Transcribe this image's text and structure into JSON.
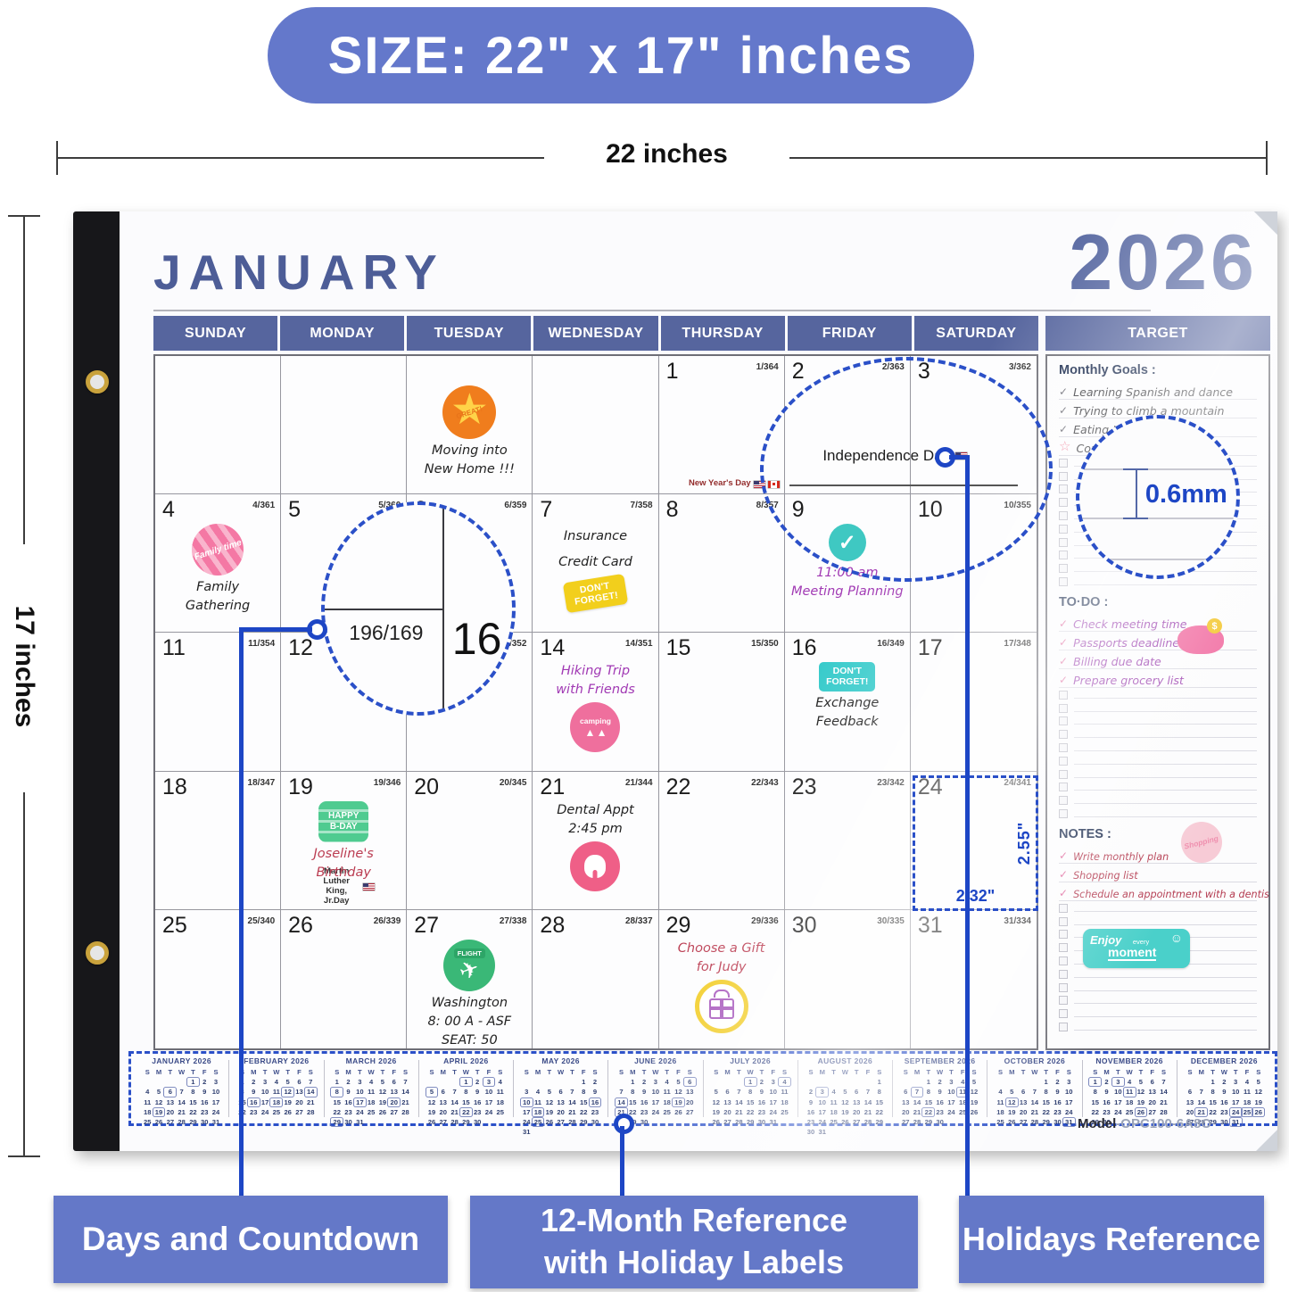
{
  "banner": {
    "text": "SIZE: 22\" x 17\" inches"
  },
  "dimension_labels": {
    "width": "22 inches",
    "height": "17 inches"
  },
  "calendar": {
    "month": "JANUARY",
    "year": "2026",
    "weekdays": [
      "SUNDAY",
      "MONDAY",
      "TUESDAY",
      "WEDNESDAY",
      "THURSDAY",
      "FRIDAY",
      "SATURDAY"
    ],
    "target_header": "TARGET",
    "cells": [
      {},
      {},
      {
        "items": [
          {
            "k": "s",
            "c": "great",
            "text": "GREAT!"
          },
          {
            "k": "t",
            "c": "dark",
            "text": "Moving into\nNew Home !!!"
          }
        ]
      },
      {},
      {
        "day": "1",
        "cd": "1/364",
        "items": [
          {
            "k": "h",
            "pos": "br",
            "c": "maroon",
            "text": "New Year's Day",
            "flags": [
              "us",
              "ca"
            ]
          }
        ]
      },
      {
        "day": "2",
        "cd": "2/363"
      },
      {
        "day": "3",
        "cd": "3/362"
      },
      {
        "day": "4",
        "cd": "4/361",
        "items": [
          {
            "k": "s",
            "c": "familytime",
            "text": "Family time"
          },
          {
            "k": "t",
            "c": "dark",
            "text": "Family\nGathering"
          }
        ]
      },
      {
        "day": "5",
        "cd": "5/360"
      },
      {
        "day": "6",
        "cd": "6/359"
      },
      {
        "day": "7",
        "cd": "7/358",
        "items": [
          {
            "k": "t",
            "c": "dark tall",
            "text": "Insurance\nCredit Card"
          },
          {
            "k": "s",
            "c": "dfy",
            "text": "DON'T\nFORGET!"
          }
        ]
      },
      {
        "day": "8",
        "cd": "8/357"
      },
      {
        "day": "9",
        "items": [
          {
            "k": "s",
            "c": "chk"
          },
          {
            "k": "t",
            "c": "purple",
            "text": "11:00 am\nMeeting Planning"
          }
        ]
      },
      {
        "day": "10",
        "cd": "10/355"
      },
      {
        "day": "11",
        "cd": "11/354"
      },
      {
        "day": "12"
      },
      {
        "day": "13",
        "cd": "13/352"
      },
      {
        "day": "14",
        "cd": "14/351",
        "items": [
          {
            "k": "t",
            "c": "purple",
            "text": "Hiking Trip\nwith Friends"
          },
          {
            "k": "s",
            "c": "camping",
            "text": "camping"
          }
        ]
      },
      {
        "day": "15",
        "cd": "15/350"
      },
      {
        "day": "16",
        "cd": "16/349",
        "items": [
          {
            "k": "s",
            "c": "dft",
            "text": "DON'T\nFORGET!"
          },
          {
            "k": "t",
            "c": "dark",
            "text": "Exchange\nFeedback"
          }
        ]
      },
      {
        "day": "17",
        "cd": "17/348"
      },
      {
        "day": "18",
        "cd": "18/347"
      },
      {
        "day": "19",
        "cd": "19/346",
        "items": [
          {
            "k": "s",
            "c": "bday",
            "text": "HAPPY\nB-DAY"
          },
          {
            "k": "t",
            "c": "red",
            "text": "Joseline's\nBirthday"
          },
          {
            "k": "h",
            "pos": "bc",
            "c": "darkh",
            "text": "Martin Luther\nKing, Jr.Day",
            "flags": [
              "us"
            ]
          }
        ]
      },
      {
        "day": "20",
        "cd": "20/345"
      },
      {
        "day": "21",
        "cd": "21/344",
        "items": [
          {
            "k": "t",
            "c": "dark",
            "text": "Dental Appt\n2:45 pm"
          },
          {
            "k": "s",
            "c": "tooth"
          }
        ]
      },
      {
        "day": "22",
        "cd": "22/343"
      },
      {
        "day": "23",
        "cd": "23/342"
      },
      {
        "day": "24",
        "cd": "24/341"
      },
      {
        "day": "25",
        "cd": "25/340"
      },
      {
        "day": "26",
        "cd": "26/339"
      },
      {
        "day": "27",
        "cd": "27/338",
        "items": [
          {
            "k": "s",
            "c": "flight",
            "text": "FLIGHT"
          },
          {
            "k": "t",
            "c": "dark",
            "text": "Washington\n8: 00 A - ASF\nSEAT: 50"
          }
        ]
      },
      {
        "day": "28",
        "cd": "28/337"
      },
      {
        "day": "29",
        "cd": "29/336",
        "items": [
          {
            "k": "t",
            "c": "red",
            "text": "Choose a Gift\nfor Judy"
          },
          {
            "k": "s",
            "c": "gift"
          }
        ]
      },
      {
        "day": "30",
        "cd": "30/335"
      },
      {
        "day": "31",
        "cd": "31/334"
      }
    ]
  },
  "sidebar": {
    "goals_title": "Monthly Goals :",
    "goals": [
      "Learning Spanish and dance",
      "Trying to climb a mountain",
      "Eating Healthier",
      "Completing fitness"
    ],
    "todo_title": "TO·DO :",
    "todos": [
      "Check meeting time",
      "Passports deadline",
      "Billing due date",
      "Prepare grocery list"
    ],
    "notes_title": "NOTES :",
    "notes": [
      "Write monthly plan",
      "Shopping list",
      "Schedule an appointment with a dentist"
    ],
    "shopping_sticker": "Shopping",
    "moment_sticker": {
      "l1": "Enjoy",
      "l2": "every",
      "l3": "moment"
    }
  },
  "magnifiers": {
    "holiday": {
      "label": "Independence Day"
    },
    "countdown": {
      "value": "196/169",
      "next_day": "16"
    },
    "pen_width": "0.6mm",
    "cell_size": {
      "width": "2.32\"",
      "height": "2.55\""
    }
  },
  "mini_calendars": {
    "dow": [
      "S",
      "M",
      "T",
      "W",
      "T",
      "F",
      "S"
    ],
    "months": [
      {
        "name": "JANUARY 2026",
        "start": 4,
        "days": 31,
        "boxed": [
          1,
          6,
          19
        ]
      },
      {
        "name": "FEBRUARY 2026",
        "start": 0,
        "days": 28,
        "boxed": [
          12,
          14,
          16,
          18
        ]
      },
      {
        "name": "MARCH 2026",
        "start": 0,
        "days": 31,
        "boxed": [
          8,
          17,
          20,
          29
        ]
      },
      {
        "name": "APRIL 2026",
        "start": 3,
        "days": 30,
        "boxed": [
          1,
          3,
          5,
          22
        ]
      },
      {
        "name": "MAY 2026",
        "start": 5,
        "days": 31,
        "boxed": [
          10,
          16,
          18,
          25
        ]
      },
      {
        "name": "JUNE 2026",
        "start": 1,
        "days": 30,
        "boxed": [
          6,
          14,
          19,
          21
        ]
      },
      {
        "name": "JULY 2026",
        "start": 3,
        "days": 31,
        "boxed": [
          1,
          4
        ]
      },
      {
        "name": "AUGUST 2026",
        "start": 6,
        "days": 31,
        "boxed": [
          3
        ]
      },
      {
        "name": "SEPTEMBER 2026",
        "start": 2,
        "days": 30,
        "boxed": [
          7,
          11,
          22
        ]
      },
      {
        "name": "OCTOBER 2026",
        "start": 4,
        "days": 31,
        "boxed": [
          12,
          31
        ]
      },
      {
        "name": "NOVEMBER 2026",
        "start": 0,
        "days": 30,
        "boxed": [
          1,
          3,
          11,
          26
        ]
      },
      {
        "name": "DECEMBER 2026",
        "start": 2,
        "days": 31,
        "boxed": [
          21,
          24,
          25,
          26,
          31
        ]
      }
    ]
  },
  "model_label": {
    "prefix": "Model",
    "code": "-OPC100-6A8O"
  },
  "callouts": [
    "Days and Countdown",
    "12-Month Reference\nwith Holiday Labels",
    "Holidays Reference"
  ]
}
